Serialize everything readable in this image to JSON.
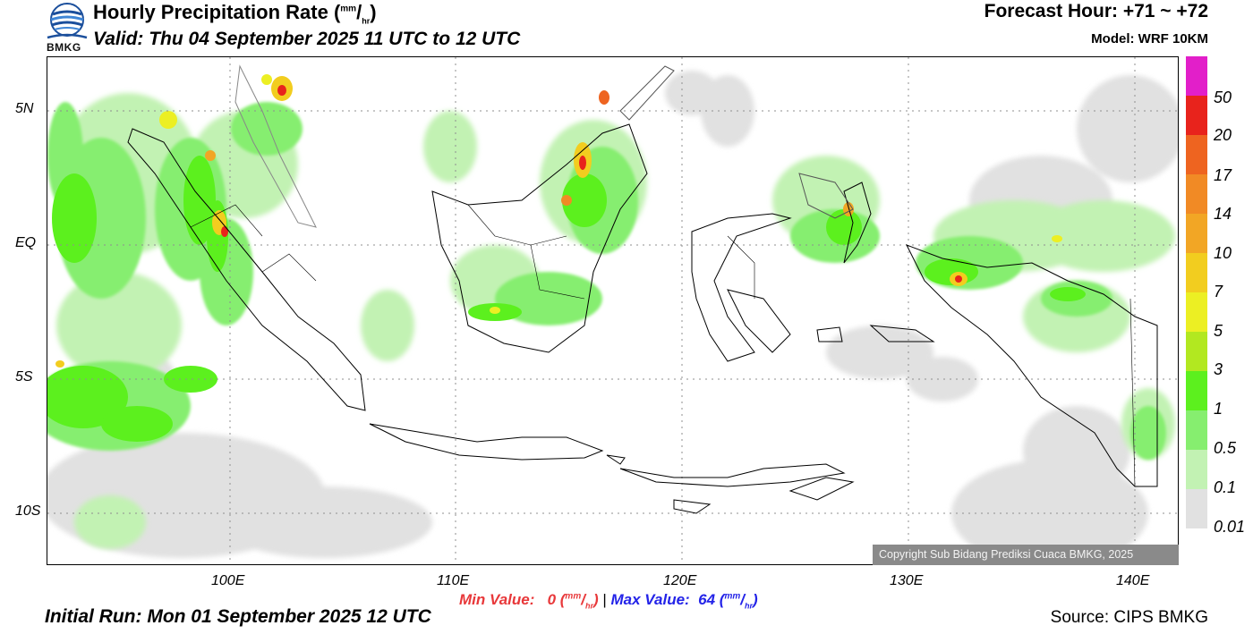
{
  "header": {
    "title_text": "Hourly Precipitation Rate (",
    "title_unit_sup": "mm",
    "title_unit_slash": "/",
    "title_unit_sub": "hr",
    "title_close": ")",
    "valid": "Valid: Thu 04 September 2025 11 UTC to 12 UTC",
    "forecast_hour": "Forecast Hour: +71 ~ +72",
    "model": "Model: WRF 10KM"
  },
  "logo": {
    "text": "BMKG",
    "icon": "bmkg-globe-logo-icon"
  },
  "map": {
    "lat_labels": [
      "5N",
      "EQ",
      "5S",
      "10S"
    ],
    "lon_labels": [
      "100E",
      "110E",
      "120E",
      "130E",
      "140E"
    ],
    "copyright": "Copyright Sub Bidang Prediksi Cuaca BMKG, 2025"
  },
  "colorbar": {
    "labels": [
      "50",
      "20",
      "17",
      "14",
      "10",
      "7",
      "5",
      "3",
      "1",
      "0.5",
      "0.1",
      "0.01"
    ],
    "colors": [
      "#e21fc9",
      "#e8231c",
      "#ee6420",
      "#f18a25",
      "#f2a625",
      "#f2cd1f",
      "#ecef23",
      "#b2e820",
      "#5cf01e",
      "#86ee6f",
      "#c2f2b3",
      "#e1e1e1"
    ]
  },
  "footer": {
    "min_label": "Min Value:",
    "min_value": "0",
    "max_label": "Max Value:",
    "max_value": "64",
    "unit_sup": "mm",
    "unit_slash": "/",
    "unit_sub": "hr",
    "separator": "|",
    "initial_run": "Initial Run: Mon 01 September 2025 12 UTC",
    "source": "Source: CIPS BMKG"
  }
}
